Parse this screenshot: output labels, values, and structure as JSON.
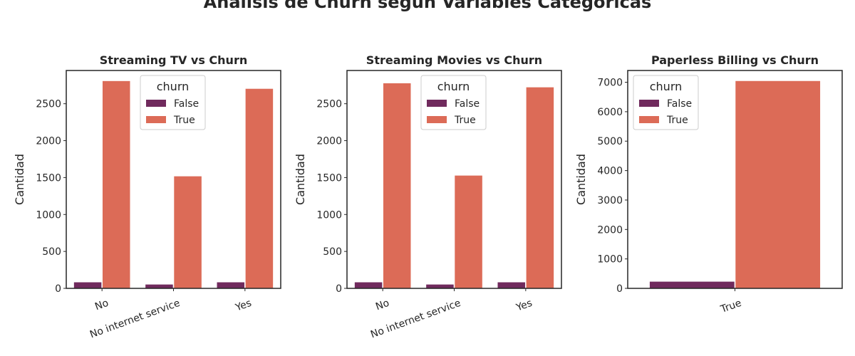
{
  "figure_title": "Análisis de Churn según Variables Categóricas",
  "colors": {
    "False": "#702a5d",
    "True": "#dc6b57"
  },
  "chart_data": [
    {
      "type": "bar",
      "title": "Streaming TV vs Churn",
      "xlabel": "",
      "ylabel": "Cantidad",
      "categories": [
        "No",
        "No internet service",
        "Yes"
      ],
      "series": [
        {
          "name": "False",
          "values": [
            85,
            55,
            85
          ]
        },
        {
          "name": "True",
          "values": [
            2810,
            1520,
            2705
          ]
        }
      ],
      "ylim": [
        0,
        2950
      ],
      "yticks": [
        0,
        500,
        1000,
        1500,
        2000,
        2500
      ],
      "xtick_rotation": 20,
      "legend": {
        "title": "churn",
        "placement": "upper-center"
      }
    },
    {
      "type": "bar",
      "title": "Streaming Movies vs Churn",
      "xlabel": "",
      "ylabel": "Cantidad",
      "categories": [
        "No",
        "No internet service",
        "Yes"
      ],
      "series": [
        {
          "name": "False",
          "values": [
            85,
            55,
            85
          ]
        },
        {
          "name": "True",
          "values": [
            2780,
            1530,
            2725
          ]
        }
      ],
      "ylim": [
        0,
        2950
      ],
      "yticks": [
        0,
        500,
        1000,
        1500,
        2000,
        2500
      ],
      "xtick_rotation": 20,
      "legend": {
        "title": "churn",
        "placement": "upper-center"
      }
    },
    {
      "type": "bar",
      "title": "Paperless Billing vs Churn",
      "xlabel": "",
      "ylabel": "Cantidad",
      "categories": [
        "True"
      ],
      "series": [
        {
          "name": "False",
          "values": [
            235
          ]
        },
        {
          "name": "True",
          "values": [
            7050
          ]
        }
      ],
      "ylim": [
        0,
        7400
      ],
      "yticks": [
        0,
        1000,
        2000,
        3000,
        4000,
        5000,
        6000,
        7000
      ],
      "xtick_rotation": 20,
      "legend": {
        "title": "churn",
        "placement": "upper-left"
      }
    }
  ]
}
